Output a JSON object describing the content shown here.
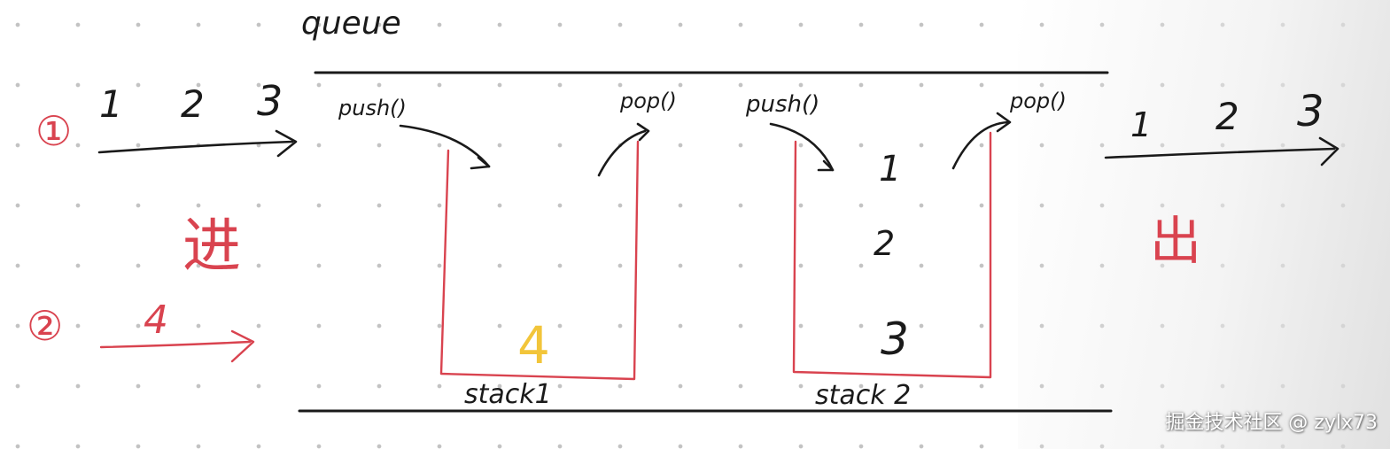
{
  "diagram": {
    "title": "queue",
    "input_step_1": {
      "marker": "①",
      "values": [
        "1",
        "2",
        "3"
      ],
      "label": "进"
    },
    "input_step_2": {
      "marker": "②",
      "values": [
        "4"
      ]
    },
    "stack1": {
      "label": "stack1",
      "push_label": "push()",
      "pop_label": "pop()",
      "contents": [
        "4"
      ]
    },
    "stack2": {
      "label": "stack 2",
      "push_label": "push()",
      "pop_label": "pop()",
      "contents": [
        "1",
        "2",
        "3"
      ]
    },
    "output": {
      "values": [
        "1",
        "2",
        "3"
      ],
      "label": "出"
    }
  },
  "watermark": "掘金技术社区 @ zylx73",
  "colors": {
    "ink": "#1a1a1a",
    "red": "#d9434f",
    "yellow": "#f2c53a"
  }
}
